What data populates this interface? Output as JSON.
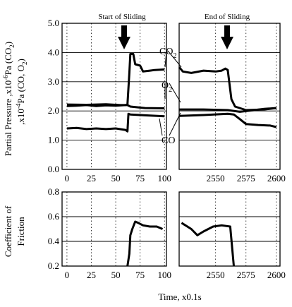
{
  "chart_data": [
    {
      "type": "line",
      "panel": "partial-pressure",
      "ylabel_line1": "Partial Pressure ,x10",
      "ylabel_line1_sup": "-6",
      "ylabel_line1_tail": "Pa (CO",
      "ylabel_line1_sub": "2",
      "ylabel_line1_end": ")",
      "ylabel_line2": ",x10",
      "ylabel_line2_sup": "-4",
      "ylabel_line2_tail": "Pa (CO, O",
      "ylabel_line2_sub": "2",
      "ylabel_line2_end": ")",
      "ylim": [
        0,
        5
      ],
      "yticks": [
        "0.0",
        "1.0",
        "2.0",
        "3.0",
        "4.0",
        "5.0"
      ],
      "xlim_left": [
        -5,
        102
      ],
      "xlim_right": [
        2520,
        2603
      ],
      "xticks_left": [
        "0",
        "25",
        "50",
        "75",
        "100"
      ],
      "xticks_right": [
        "2550",
        "2575",
        "2600"
      ],
      "annotations": {
        "start": "Start of Sliding",
        "end": "End of Sliding",
        "co2_label": "CO",
        "co2_label_sub": "2",
        "o2_label": "O",
        "o2_label_sub": "2",
        "co_label": "CO"
      },
      "series": [
        {
          "name": "CO2",
          "left": [
            [
              0,
              2.17
            ],
            [
              10,
              2.18
            ],
            [
              20,
              2.2
            ],
            [
              30,
              2.17
            ],
            [
              40,
              2.19
            ],
            [
              50,
              2.18
            ],
            [
              60,
              2.2
            ],
            [
              62,
              2.22
            ],
            [
              64,
              3.3
            ],
            [
              65,
              3.95
            ],
            [
              68,
              3.95
            ],
            [
              70,
              3.6
            ],
            [
              75,
              3.55
            ],
            [
              78,
              3.35
            ],
            [
              85,
              3.38
            ],
            [
              90,
              3.4
            ],
            [
              100,
              3.42
            ]
          ],
          "right": [
            [
              2520,
              3.5
            ],
            [
              2523,
              3.35
            ],
            [
              2530,
              3.3
            ],
            [
              2540,
              3.38
            ],
            [
              2550,
              3.35
            ],
            [
              2555,
              3.38
            ],
            [
              2558,
              3.45
            ],
            [
              2560,
              3.4
            ],
            [
              2563,
              2.4
            ],
            [
              2566,
              2.15
            ],
            [
              2575,
              2.03
            ],
            [
              2590,
              2.05
            ],
            [
              2600,
              2.1
            ]
          ]
        },
        {
          "name": "O2",
          "left": [
            [
              0,
              2.22
            ],
            [
              20,
              2.21
            ],
            [
              40,
              2.23
            ],
            [
              55,
              2.2
            ],
            [
              62,
              2.2
            ],
            [
              65,
              2.15
            ],
            [
              80,
              2.1
            ],
            [
              100,
              2.09
            ]
          ],
          "right": [
            [
              2520,
              2.05
            ],
            [
              2540,
              2.05
            ],
            [
              2560,
              2.03
            ],
            [
              2570,
              1.97
            ],
            [
              2580,
              2.02
            ],
            [
              2590,
              2.07
            ],
            [
              2600,
              2.1
            ]
          ]
        },
        {
          "name": "CO",
          "left": [
            [
              0,
              1.4
            ],
            [
              10,
              1.42
            ],
            [
              20,
              1.38
            ],
            [
              30,
              1.4
            ],
            [
              40,
              1.38
            ],
            [
              50,
              1.4
            ],
            [
              60,
              1.35
            ],
            [
              62,
              1.3
            ],
            [
              63,
              1.9
            ],
            [
              65,
              1.88
            ],
            [
              80,
              1.85
            ],
            [
              100,
              1.82
            ]
          ],
          "right": [
            [
              2520,
              1.83
            ],
            [
              2540,
              1.86
            ],
            [
              2560,
              1.9
            ],
            [
              2565,
              1.88
            ],
            [
              2570,
              1.72
            ],
            [
              2575,
              1.55
            ],
            [
              2585,
              1.52
            ],
            [
              2595,
              1.5
            ],
            [
              2600,
              1.45
            ]
          ]
        }
      ]
    },
    {
      "type": "line",
      "panel": "friction",
      "ylabel_line1": "Coefficient of",
      "ylabel_line2": "Friction",
      "ylim": [
        0.2,
        0.8
      ],
      "yticks": [
        "0.2",
        "0.4",
        "0.6",
        "0.8"
      ],
      "xlim_left": [
        -5,
        102
      ],
      "xlim_right": [
        2520,
        2603
      ],
      "xticks_left": [
        "0",
        "25",
        "50",
        "75",
        "100"
      ],
      "xticks_right": [
        "2550",
        "2575",
        "2600"
      ],
      "xlabel": "Time,  x0.1s",
      "series": [
        {
          "name": "Coefficient of Friction",
          "left": [
            [
              62,
              0.2
            ],
            [
              64,
              0.3
            ],
            [
              65,
              0.45
            ],
            [
              67,
              0.5
            ],
            [
              70,
              0.56
            ],
            [
              73,
              0.55
            ],
            [
              78,
              0.53
            ],
            [
              85,
              0.52
            ],
            [
              92,
              0.52
            ],
            [
              98,
              0.5
            ]
          ],
          "right": [
            [
              2522,
              0.55
            ],
            [
              2530,
              0.5
            ],
            [
              2535,
              0.45
            ],
            [
              2540,
              0.48
            ],
            [
              2548,
              0.52
            ],
            [
              2555,
              0.53
            ],
            [
              2562,
              0.52
            ],
            [
              2565,
              0.2
            ]
          ]
        }
      ]
    }
  ]
}
